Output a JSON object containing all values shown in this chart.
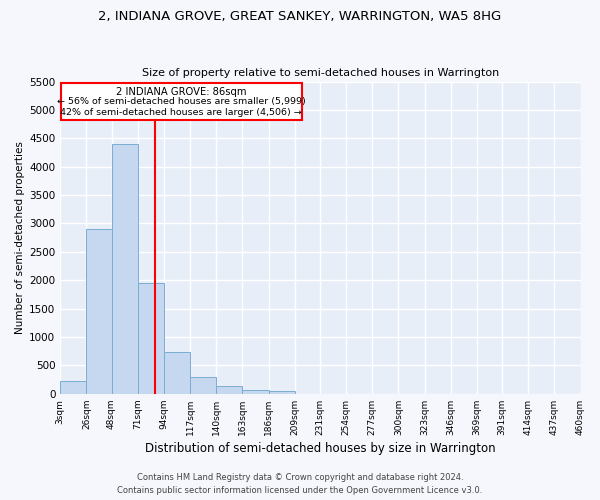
{
  "title1": "2, INDIANA GROVE, GREAT SANKEY, WARRINGTON, WA5 8HG",
  "title2": "Size of property relative to semi-detached houses in Warrington",
  "xlabel": "Distribution of semi-detached houses by size in Warrington",
  "ylabel": "Number of semi-detached properties",
  "bins_left": [
    3,
    26,
    48,
    71,
    94,
    117,
    140,
    163,
    186,
    209,
    231,
    254,
    277,
    300,
    323,
    346,
    369,
    391,
    414,
    437
  ],
  "bins_right": [
    26,
    48,
    71,
    94,
    117,
    140,
    163,
    186,
    209,
    231,
    254,
    277,
    300,
    323,
    346,
    369,
    391,
    414,
    437,
    460
  ],
  "bar_heights": [
    220,
    2900,
    4400,
    1950,
    730,
    290,
    130,
    70,
    50,
    0,
    0,
    0,
    0,
    0,
    0,
    0,
    0,
    0,
    0,
    0
  ],
  "bar_color": "#c5d8f0",
  "bar_edge_color": "#7aadd4",
  "background_color": "#e8eef8",
  "grid_color": "#ffffff",
  "red_line_x": 86,
  "ylim": [
    0,
    5500
  ],
  "yticks": [
    0,
    500,
    1000,
    1500,
    2000,
    2500,
    3000,
    3500,
    4000,
    4500,
    5000,
    5500
  ],
  "tick_labels": [
    "3sqm",
    "26sqm",
    "48sqm",
    "71sqm",
    "94sqm",
    "117sqm",
    "140sqm",
    "163sqm",
    "186sqm",
    "209sqm",
    "231sqm",
    "254sqm",
    "277sqm",
    "300sqm",
    "323sqm",
    "346sqm",
    "369sqm",
    "391sqm",
    "414sqm",
    "437sqm",
    "460sqm"
  ],
  "annotation_title": "2 INDIANA GROVE: 86sqm",
  "annotation_line1": "← 56% of semi-detached houses are smaller (5,999)",
  "annotation_line2": "42% of semi-detached houses are larger (4,506) →",
  "footer1": "Contains HM Land Registry data © Crown copyright and database right 2024.",
  "footer2": "Contains public sector information licensed under the Open Government Licence v3.0.",
  "fig_bg": "#f5f7fc"
}
